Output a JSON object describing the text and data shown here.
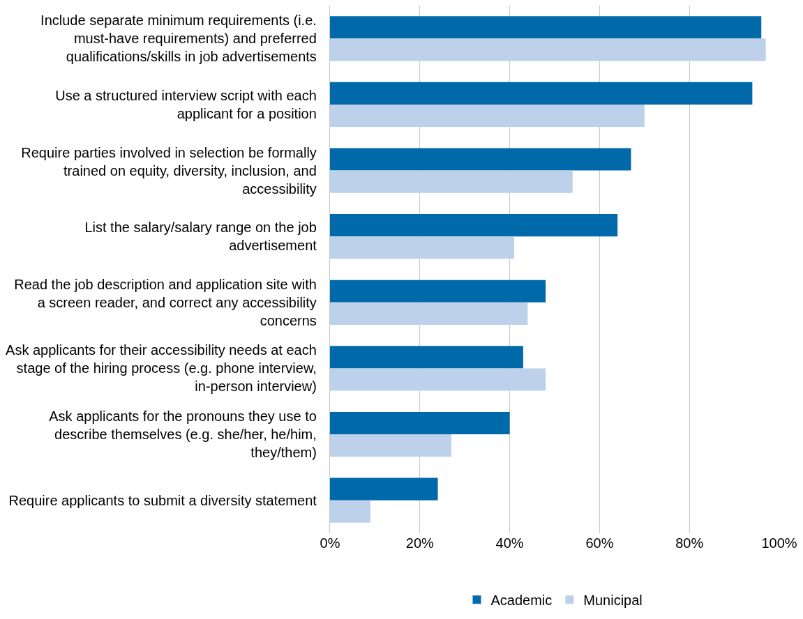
{
  "chart_data": {
    "type": "bar",
    "orientation": "horizontal",
    "categories": [
      "Include separate minimum requirements (i.e.\nmust-have requirements) and preferred\nqualifications/skills in job advertisements",
      "Use a structured interview script with each\napplicant for a position",
      "Require parties involved in selection be formally\ntrained on equity, diversity, inclusion, and\naccessibility",
      "List the salary/salary range on the job\nadvertisement",
      "Read the job description and application site with\na screen reader, and correct any accessibility\nconcerns",
      "Ask applicants for their accessibility needs at each\nstage of the hiring process (e.g. phone interview,\nin-person interview)",
      "Ask applicants for the pronouns they use to\ndescribe themselves (e.g. she/her, he/him,\nthey/them)",
      "Require applicants to submit a diversity statement"
    ],
    "series": [
      {
        "name": "Academic",
        "color": "#0069aa",
        "values": [
          96,
          94,
          67,
          64,
          48,
          43,
          40,
          24
        ]
      },
      {
        "name": "Municipal",
        "color": "#bdd1ea",
        "values": [
          97,
          70,
          54,
          41,
          44,
          48,
          27,
          9
        ]
      }
    ],
    "xlim": [
      0,
      100
    ],
    "xticks": [
      {
        "value": 0,
        "label": "0%"
      },
      {
        "value": 20,
        "label": "20%"
      },
      {
        "value": 40,
        "label": "40%"
      },
      {
        "value": 60,
        "label": "60%"
      },
      {
        "value": 80,
        "label": "80%"
      },
      {
        "value": 100,
        "label": "100%"
      }
    ],
    "grid": "x",
    "legend": "bottom"
  }
}
